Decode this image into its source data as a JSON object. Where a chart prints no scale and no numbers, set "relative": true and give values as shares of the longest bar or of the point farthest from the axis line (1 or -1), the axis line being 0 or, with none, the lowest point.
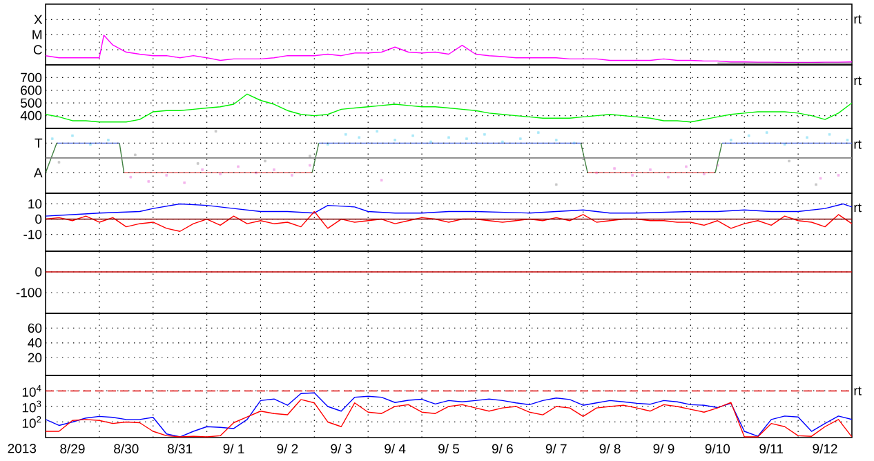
{
  "chart_data": [
    {
      "type": "line",
      "xlim": [
        "2013-08-29T00:00",
        "2013-09-13T00:00"
      ],
      "relative": true,
      "grid": true,
      "tick_labels": "y",
      "xticks": [
        {
          "value": "2013-08-30T00:00",
          "label": null
        },
        {
          "value": "2013-08-31T00:00",
          "label": null
        },
        {
          "value": "2013-09-01T00:00",
          "label": null
        },
        {
          "value": "2013-09-02T00:00",
          "label": null
        },
        {
          "value": "2013-09-03T00:00",
          "label": null
        },
        {
          "value": "2013-09-04T00:00",
          "label": null
        },
        {
          "value": "2013-09-05T00:00",
          "label": null
        },
        {
          "value": "2013-09-06T00:00",
          "label": null
        },
        {
          "value": "2013-09-07T00:00",
          "label": null
        },
        {
          "value": "2013-09-08T00:00",
          "label": null
        },
        {
          "value": "2013-09-09T00:00",
          "label": null
        },
        {
          "value": "2013-09-10T00:00",
          "label": null
        },
        {
          "value": "2013-09-11T00:00",
          "label": null
        },
        {
          "value": "2013-09-12T00:00",
          "label": null
        }
      ],
      "annotations": [
        "rt",
        "X",
        "M",
        {
          "text": "C",
          "x": "2013-08-29T00:00",
          "y": 0.51
        }
      ],
      "series": [
        {
          "color": "#ff00ff",
          "x": [
            "2013-08-29T00:00",
            "2013-08-29T06:00",
            "2013-08-29T12:00",
            "2013-08-29T18:00",
            "2013-08-30T00:00",
            "2013-08-30T02:00",
            "2013-08-30T06:00",
            "2013-08-30T12:00",
            "2013-08-30T18:00",
            "2013-08-31T00:00",
            "2013-08-31T06:00",
            "2013-08-31T12:00",
            "2013-08-31T18:00",
            "2013-09-01T00:00",
            "2013-09-01T06:00",
            "2013-09-01T12:00",
            "2013-09-01T18:00",
            "2013-09-02T00:00",
            "2013-09-02T06:00",
            "2013-09-02T12:00",
            "2013-09-02T18:00",
            "2013-09-03T00:00",
            "2013-09-03T06:00",
            "2013-09-03T12:00",
            "2013-09-03T18:00",
            "2013-09-04T00:00",
            "2013-09-04T06:00",
            "2013-09-04T12:00",
            "2013-09-04T18:00",
            "2013-09-05T00:00",
            "2013-09-05T06:00",
            "2013-09-05T12:00",
            "2013-09-05T18:00",
            "2013-09-06T00:00",
            "2013-09-06T06:00",
            "2013-09-06T12:00",
            "2013-09-06T18:00",
            "2013-09-07T00:00",
            "2013-09-07T06:00",
            "2013-09-07T12:00",
            "2013-09-07T18:00",
            "2013-09-08T00:00",
            "2013-09-08T06:00",
            "2013-09-08T12:00",
            "2013-09-08T18:00",
            "2013-09-09T00:00",
            "2013-09-09T06:00",
            "2013-09-09T12:00",
            "2013-09-09T18:00",
            "2013-09-10T00:00",
            "2013-09-10T06:00",
            "2013-09-10T12:00",
            "2013-09-10T18:00",
            "2013-09-11T00:00",
            "2013-09-11T06:00",
            "2013-09-11T12:00",
            "2013-09-11T18:00",
            "2013-09-12T00:00",
            "2013-09-12T06:00",
            "2013-09-12T12:00",
            "2013-09-12T18:00",
            "2013-09-13T00:00"
          ],
          "values": [
            0.31,
            0.24,
            0.24,
            0.24,
            0.24,
            1,
            0.67,
            0.43,
            0.36,
            0.31,
            0.31,
            0.24,
            0.31,
            0.24,
            0.15,
            0.2,
            0.2,
            0.2,
            0.24,
            0.31,
            0.31,
            0.31,
            0.36,
            0.31,
            0.4,
            0.4,
            0.43,
            0.6,
            0.43,
            0.4,
            0.43,
            0.36,
            0.66,
            0.36,
            0.31,
            0.28,
            0.24,
            0.24,
            0.24,
            0.24,
            0.2,
            0.2,
            0.2,
            0.15,
            0.15,
            0.15,
            0.15,
            0.2,
            0.15,
            0.15,
            0.13,
            0.13,
            0.1,
            0.1,
            0.09,
            0.09,
            0.08,
            0.08,
            0.08,
            0.09,
            0.09,
            0.1
          ]
        },
        {
          "color": "#404040",
          "x": [
            "2013-09-10T12:00",
            "2013-09-13T00:00"
          ],
          "values": [
            0.06,
            0.06
          ]
        }
      ]
    },
    {
      "type": "line",
      "xlim": [
        "2013-08-29T00:00",
        "2013-09-13T00:00"
      ],
      "ylim": [
        300,
        800
      ],
      "grid": true,
      "tick_labels": "y",
      "yticks": [
        400,
        500,
        600,
        700
      ],
      "xticks": [
        {
          "value": "2013-08-30T00:00",
          "label": null
        },
        {
          "value": "2013-08-31T00:00",
          "label": null
        },
        {
          "value": "2013-09-01T00:00",
          "label": null
        },
        {
          "value": "2013-09-02T00:00",
          "label": null
        },
        {
          "value": "2013-09-03T00:00",
          "label": null
        },
        {
          "value": "2013-09-04T00:00",
          "label": null
        },
        {
          "value": "2013-09-05T00:00",
          "label": null
        },
        {
          "value": "2013-09-06T00:00",
          "label": null
        },
        {
          "value": "2013-09-07T00:00",
          "label": null
        },
        {
          "value": "2013-09-08T00:00",
          "label": null
        },
        {
          "value": "2013-09-09T00:00",
          "label": null
        },
        {
          "value": "2013-09-10T00:00",
          "label": null
        },
        {
          "value": "2013-09-11T00:00",
          "label": null
        },
        {
          "value": "2013-09-12T00:00",
          "label": null
        }
      ],
      "annotations": [
        "rt"
      ],
      "x": [
        "2013-08-29T00:00",
        "2013-08-29T06:00",
        "2013-08-29T12:00",
        "2013-08-29T18:00",
        "2013-08-30T00:00",
        "2013-08-30T06:00",
        "2013-08-30T12:00",
        "2013-08-30T18:00",
        "2013-08-31T00:00",
        "2013-08-31T06:00",
        "2013-08-31T12:00",
        "2013-08-31T18:00",
        "2013-09-01T00:00",
        "2013-09-01T06:00",
        "2013-09-01T12:00",
        "2013-09-01T18:00",
        "2013-09-02T00:00",
        "2013-09-02T06:00",
        "2013-09-02T12:00",
        "2013-09-02T18:00",
        "2013-09-03T00:00",
        "2013-09-03T06:00",
        "2013-09-03T12:00",
        "2013-09-03T18:00",
        "2013-09-04T00:00",
        "2013-09-04T06:00",
        "2013-09-04T12:00",
        "2013-09-04T18:00",
        "2013-09-05T00:00",
        "2013-09-05T06:00",
        "2013-09-05T12:00",
        "2013-09-05T18:00",
        "2013-09-06T00:00",
        "2013-09-06T06:00",
        "2013-09-06T12:00",
        "2013-09-06T18:00",
        "2013-09-07T00:00",
        "2013-09-07T06:00",
        "2013-09-07T12:00",
        "2013-09-07T18:00",
        "2013-09-08T00:00",
        "2013-09-08T06:00",
        "2013-09-08T12:00",
        "2013-09-08T18:00",
        "2013-09-09T00:00",
        "2013-09-09T06:00",
        "2013-09-09T12:00",
        "2013-09-09T18:00",
        "2013-09-10T00:00",
        "2013-09-10T06:00",
        "2013-09-10T12:00",
        "2013-09-10T18:00",
        "2013-09-11T00:00",
        "2013-09-11T06:00",
        "2013-09-11T12:00",
        "2013-09-11T18:00",
        "2013-09-12T00:00",
        "2013-09-12T06:00",
        "2013-09-12T12:00",
        "2013-09-12T18:00",
        "2013-09-13T00:00"
      ],
      "series": [
        {
          "color": "#00ee00",
          "values": [
            410,
            390,
            360,
            360,
            350,
            350,
            350,
            370,
            430,
            440,
            440,
            450,
            460,
            470,
            490,
            570,
            520,
            490,
            440,
            410,
            400,
            410,
            450,
            460,
            470,
            480,
            490,
            480,
            470,
            470,
            460,
            450,
            440,
            420,
            410,
            400,
            390,
            380,
            380,
            380,
            390,
            400,
            410,
            400,
            390,
            380,
            360,
            360,
            350,
            370,
            390,
            410,
            420,
            430,
            430,
            430,
            420,
            400,
            370,
            420,
            500
          ]
        }
      ]
    },
    {
      "type": "line",
      "xlim": [
        "2013-08-29T00:00",
        "2013-09-13T00:00"
      ],
      "relative": true,
      "grid": true,
      "tick_labels": "y",
      "xticks": [
        {
          "value": "2013-08-30T00:00",
          "label": null
        },
        {
          "value": "2013-08-31T00:00",
          "label": null
        },
        {
          "value": "2013-09-01T00:00",
          "label": null
        },
        {
          "value": "2013-09-02T00:00",
          "label": null
        },
        {
          "value": "2013-09-03T00:00",
          "label": null
        },
        {
          "value": "2013-09-04T00:00",
          "label": null
        },
        {
          "value": "2013-09-05T00:00",
          "label": null
        },
        {
          "value": "2013-09-06T00:00",
          "label": null
        },
        {
          "value": "2013-09-07T00:00",
          "label": null
        },
        {
          "value": "2013-09-08T00:00",
          "label": null
        },
        {
          "value": "2013-09-09T00:00",
          "label": null
        },
        {
          "value": "2013-09-10T00:00",
          "label": null
        },
        {
          "value": "2013-09-11T00:00",
          "label": null
        },
        {
          "value": "2013-09-12T00:00",
          "label": null
        }
      ],
      "annotations": [
        "rt",
        {
          "text": "T",
          "x": "2013-08-29T00:00",
          "y": 0.81
        },
        {
          "text": "A",
          "x": "2013-08-29T00:00",
          "y": 0.33
        }
      ],
      "ref_lines": [
        {
          "axis": "y",
          "value": 0.57,
          "color": "#808080"
        }
      ],
      "series": [
        {
          "type": "scatter",
          "color": "#aae8f8",
          "x": [
            "2013-08-29T03:00",
            "2013-08-29T12:00",
            "2013-08-29T20:00",
            "2013-08-30T04:00",
            "2013-09-03T06:00",
            "2013-09-03T14:00",
            "2013-09-03T20:00",
            "2013-09-04T04:00",
            "2013-09-04T12:00",
            "2013-09-04T20:00",
            "2013-09-05T04:00",
            "2013-09-05T12:00",
            "2013-09-05T20:00",
            "2013-09-06T04:00",
            "2013-09-06T12:00",
            "2013-09-06T20:00",
            "2013-09-07T04:00",
            "2013-09-07T12:00",
            "2013-09-07T20:00",
            "2013-09-10T18:00",
            "2013-09-11T02:00",
            "2013-09-11T10:00",
            "2013-09-11T18:00",
            "2013-09-12T04:00",
            "2013-09-12T14:00",
            "2013-09-12T22:00"
          ],
          "values": [
            0.88,
            0.93,
            0.79,
            0.86,
            0.79,
            0.95,
            0.9,
            1,
            0.86,
            0.93,
            0.83,
            0.9,
            0.88,
            0.95,
            0.83,
            0.88,
            0.98,
            0.86,
            0.81,
            0.86,
            0.93,
            0.98,
            0.79,
            0.9,
            0.95,
            0.86
          ]
        },
        {
          "type": "scatter",
          "color": "#f4b4ec",
          "x": [
            "2013-08-30T14:00",
            "2013-08-30T22:00",
            "2013-08-31T06:00",
            "2013-08-31T14:00",
            "2013-08-31T22:00",
            "2013-09-01T06:00",
            "2013-09-01T14:00",
            "2013-09-01T22:00",
            "2013-09-02T06:00",
            "2013-09-02T14:00",
            "2013-09-02T22:00",
            "2013-09-04T06:00",
            "2013-09-08T06:00",
            "2013-09-08T14:00",
            "2013-09-08T22:00",
            "2013-09-09T06:00",
            "2013-09-09T14:00",
            "2013-09-09T22:00",
            "2013-09-10T06:00",
            "2013-09-10T12:00",
            "2013-09-12T10:00",
            "2013-09-12T18:00"
          ],
          "values": [
            0.26,
            0.19,
            0.29,
            0.17,
            0.38,
            0.31,
            0.43,
            0.33,
            0.38,
            0.29,
            0.45,
            0.21,
            0.33,
            0.4,
            0.29,
            0.38,
            0.26,
            0.43,
            0.31,
            0.45,
            0.24,
            0.29
          ]
        },
        {
          "type": "scatter",
          "color": "#c8c8c8",
          "x": [
            "2013-08-29T06:00",
            "2013-08-30T16:00",
            "2013-08-31T20:00",
            "2013-09-01T04:00",
            "2013-09-02T02:00",
            "2013-09-02T22:00",
            "2013-09-07T12:00",
            "2013-09-11T20:00",
            "2013-09-12T08:00"
          ],
          "values": [
            0.5,
            0.62,
            0.48,
            1,
            0.52,
            0.6,
            0.14,
            0.52,
            0.14
          ]
        },
        {
          "color": "#4060e0",
          "x": [
            "2013-08-29T05:00",
            "2013-08-30T09:00",
            "2013-08-30T10:00",
            "2013-09-03T02:00",
            "2013-09-07T23:00",
            "2013-09-08T00:00",
            "2013-09-10T14:00",
            "2013-09-13T00:00"
          ],
          "values": [
            0.81,
            0.81,
            null,
            0.81,
            0.81,
            null,
            0.81,
            0.81
          ]
        },
        {
          "color": "#e04040",
          "x": [
            "2013-08-30T11:00",
            "2013-09-02T23:00",
            "2013-09-03T00:00",
            "2013-09-08T02:00",
            "2013-09-10T11:00"
          ],
          "values": [
            0.33,
            0.33,
            null,
            0.33,
            0.33
          ]
        },
        {
          "color": "#408040",
          "x": [
            "2013-08-29T00:00",
            "2013-08-29T05:00",
            "2013-08-29T06:00",
            "2013-08-30T09:00",
            "2013-08-30T11:00",
            "2013-08-30T12:00",
            "2013-09-02T23:00",
            "2013-09-03T02:00",
            "2013-09-03T03:00",
            "2013-09-07T23:00",
            "2013-09-08T02:00",
            "2013-09-08T03:00",
            "2013-09-10T11:00",
            "2013-09-10T14:00"
          ],
          "values": [
            0.33,
            0.81,
            null,
            0.81,
            0.33,
            null,
            0.33,
            0.81,
            null,
            0.81,
            0.33,
            null,
            0.33,
            0.81
          ]
        }
      ]
    },
    {
      "type": "line",
      "xlim": [
        "2013-08-29T00:00",
        "2013-09-13T00:00"
      ],
      "ylim": [
        -21,
        17
      ],
      "grid": true,
      "tick_labels": "y",
      "yticks": [
        -10,
        0,
        10
      ],
      "xticks": [
        {
          "value": "2013-08-30T00:00",
          "label": null
        },
        {
          "value": "2013-08-31T00:00",
          "label": null
        },
        {
          "value": "2013-09-01T00:00",
          "label": null
        },
        {
          "value": "2013-09-02T00:00",
          "label": null
        },
        {
          "value": "2013-09-03T00:00",
          "label": null
        },
        {
          "value": "2013-09-04T00:00",
          "label": null
        },
        {
          "value": "2013-09-05T00:00",
          "label": null
        },
        {
          "value": "2013-09-06T00:00",
          "label": null
        },
        {
          "value": "2013-09-07T00:00",
          "label": null
        },
        {
          "value": "2013-09-08T00:00",
          "label": null
        },
        {
          "value": "2013-09-09T00:00",
          "label": null
        },
        {
          "value": "2013-09-10T00:00",
          "label": null
        },
        {
          "value": "2013-09-11T00:00",
          "label": null
        },
        {
          "value": "2013-09-12T00:00",
          "label": null
        }
      ],
      "annotations": [
        "rt"
      ],
      "ref_lines": [
        {
          "axis": "y",
          "value": 0,
          "color": "#800000"
        }
      ],
      "x": [
        "2013-08-29T00:00",
        "2013-08-29T06:00",
        "2013-08-29T12:00",
        "2013-08-29T18:00",
        "2013-08-30T00:00",
        "2013-08-30T06:00",
        "2013-08-30T12:00",
        "2013-08-30T18:00",
        "2013-08-31T00:00",
        "2013-08-31T06:00",
        "2013-08-31T12:00",
        "2013-08-31T18:00",
        "2013-09-01T00:00",
        "2013-09-01T06:00",
        "2013-09-01T12:00",
        "2013-09-01T18:00",
        "2013-09-02T00:00",
        "2013-09-02T06:00",
        "2013-09-02T12:00",
        "2013-09-02T18:00",
        "2013-09-03T00:00",
        "2013-09-03T06:00",
        "2013-09-03T12:00",
        "2013-09-03T18:00",
        "2013-09-04T00:00",
        "2013-09-04T06:00",
        "2013-09-04T12:00",
        "2013-09-04T18:00",
        "2013-09-05T00:00",
        "2013-09-05T06:00",
        "2013-09-05T12:00",
        "2013-09-05T18:00",
        "2013-09-06T00:00",
        "2013-09-06T06:00",
        "2013-09-06T12:00",
        "2013-09-06T18:00",
        "2013-09-07T00:00",
        "2013-09-07T06:00",
        "2013-09-07T12:00",
        "2013-09-07T18:00",
        "2013-09-08T00:00",
        "2013-09-08T06:00",
        "2013-09-08T12:00",
        "2013-09-08T18:00",
        "2013-09-09T00:00",
        "2013-09-09T06:00",
        "2013-09-09T12:00",
        "2013-09-09T18:00",
        "2013-09-10T00:00",
        "2013-09-10T06:00",
        "2013-09-10T12:00",
        "2013-09-10T18:00",
        "2013-09-11T00:00",
        "2013-09-11T06:00",
        "2013-09-11T12:00",
        "2013-09-11T18:00",
        "2013-09-12T00:00",
        "2013-09-12T06:00",
        "2013-09-12T12:00",
        "2013-09-12T18:00",
        "2013-09-13T00:00"
      ],
      "series": [
        {
          "color": "#0000ff",
          "x": [
            "2013-08-29T00:00",
            "2013-08-29T12:00",
            "2013-08-30T00:00",
            "2013-08-30T18:00",
            "2013-08-31T00:00",
            "2013-08-31T12:00",
            "2013-09-01T00:00",
            "2013-09-01T12:00",
            "2013-09-02T00:00",
            "2013-09-02T12:00",
            "2013-09-03T00:00",
            "2013-09-03T06:00",
            "2013-09-03T18:00",
            "2013-09-04T00:00",
            "2013-09-04T12:00",
            "2013-09-05T00:00",
            "2013-09-05T12:00",
            "2013-09-06T00:00",
            "2013-09-07T00:00",
            "2013-09-08T00:00",
            "2013-09-08T12:00",
            "2013-09-09T00:00",
            "2013-09-10T00:00",
            "2013-09-10T12:00",
            "2013-09-11T00:00",
            "2013-09-11T12:00",
            "2013-09-12T00:00",
            "2013-09-12T12:00",
            "2013-09-12T20:00",
            "2013-09-13T00:00"
          ],
          "values": [
            2,
            3,
            4,
            5,
            7,
            10,
            9,
            7,
            5,
            5,
            4,
            9,
            8,
            5,
            4,
            4,
            5,
            5,
            4,
            6,
            4,
            4,
            5,
            5,
            6,
            5,
            5,
            7,
            10,
            8
          ]
        },
        {
          "color": "#ff0000",
          "values": [
            0,
            1,
            -1,
            2,
            -2,
            1,
            -5,
            -3,
            -2,
            -6,
            -8,
            -3,
            0,
            -4,
            2,
            -3,
            -1,
            -3,
            -2,
            -5,
            5,
            -6,
            0,
            -2,
            -1,
            0,
            -3,
            -1,
            1,
            0,
            -2,
            0,
            0,
            -1,
            -2,
            -1,
            0,
            -1,
            1,
            -1,
            3,
            -2,
            -1,
            0,
            0,
            -1,
            -1,
            -2,
            -2,
            -4,
            -1,
            -6,
            -3,
            -1,
            -4,
            2,
            -1,
            -2,
            -5,
            3,
            -3
          ]
        }
      ]
    },
    {
      "type": "line",
      "xlim": [
        "2013-08-29T00:00",
        "2013-09-13T00:00"
      ],
      "ylim": [
        -200,
        100
      ],
      "grid": true,
      "tick_labels": "y",
      "yticks": [
        -100,
        0
      ],
      "xticks": [
        {
          "value": "2013-08-30T00:00",
          "label": null
        },
        {
          "value": "2013-08-31T00:00",
          "label": null
        },
        {
          "value": "2013-09-01T00:00",
          "label": null
        },
        {
          "value": "2013-09-02T00:00",
          "label": null
        },
        {
          "value": "2013-09-03T00:00",
          "label": null
        },
        {
          "value": "2013-09-04T00:00",
          "label": null
        },
        {
          "value": "2013-09-05T00:00",
          "label": null
        },
        {
          "value": "2013-09-06T00:00",
          "label": null
        },
        {
          "value": "2013-09-07T00:00",
          "label": null
        },
        {
          "value": "2013-09-08T00:00",
          "label": null
        },
        {
          "value": "2013-09-09T00:00",
          "label": null
        },
        {
          "value": "2013-09-10T00:00",
          "label": null
        },
        {
          "value": "2013-09-11T00:00",
          "label": null
        },
        {
          "value": "2013-09-12T00:00",
          "label": null
        }
      ],
      "ref_lines": [
        {
          "axis": "y",
          "value": 0,
          "color": "#c00000"
        }
      ]
    },
    {
      "type": "line",
      "xlim": [
        "2013-08-29T00:00",
        "2013-09-13T00:00"
      ],
      "ylim": [
        -4,
        80
      ],
      "grid": true,
      "tick_labels": "y",
      "yticks": [
        20,
        40,
        60
      ],
      "xticks": [
        {
          "value": "2013-08-30T00:00",
          "label": null
        },
        {
          "value": "2013-08-31T00:00",
          "label": null
        },
        {
          "value": "2013-09-01T00:00",
          "label": null
        },
        {
          "value": "2013-09-02T00:00",
          "label": null
        },
        {
          "value": "2013-09-03T00:00",
          "label": null
        },
        {
          "value": "2013-09-04T00:00",
          "label": null
        },
        {
          "value": "2013-09-05T00:00",
          "label": null
        },
        {
          "value": "2013-09-06T00:00",
          "label": null
        },
        {
          "value": "2013-09-07T00:00",
          "label": null
        },
        {
          "value": "2013-09-08T00:00",
          "label": null
        },
        {
          "value": "2013-09-09T00:00",
          "label": null
        },
        {
          "value": "2013-09-10T00:00",
          "label": null
        },
        {
          "value": "2013-09-11T00:00",
          "label": null
        },
        {
          "value": "2013-09-12T00:00",
          "label": null
        }
      ]
    },
    {
      "type": "line",
      "xlim": [
        "2013-08-29T00:00",
        "2013-09-13T00:00"
      ],
      "ylim": [
        10,
        100000
      ],
      "log": "y",
      "grid": true,
      "xlabel": "2013",
      "yticks": [
        {
          "value": 100,
          "label": "10$^{2}$"
        },
        {
          "value": 1000,
          "label": "10$^{3}$"
        },
        {
          "value": 10000,
          "label": "10$^{4}$"
        }
      ],
      "xticks": [
        {
          "value": "2013-08-29T12:00",
          "label": "8/29"
        },
        {
          "value": "2013-08-30T12:00",
          "label": "8/30"
        },
        {
          "value": "2013-08-31T12:00",
          "label": "8/31"
        },
        {
          "value": "2013-09-01T12:00",
          "label": "9/ 1"
        },
        {
          "value": "2013-09-02T12:00",
          "label": "9/ 2"
        },
        {
          "value": "2013-09-03T12:00",
          "label": "9/ 3"
        },
        {
          "value": "2013-09-04T12:00",
          "label": "9/ 4"
        },
        {
          "value": "2013-09-05T12:00",
          "label": "9/ 5"
        },
        {
          "value": "2013-09-06T12:00",
          "label": "9/ 6"
        },
        {
          "value": "2013-09-07T12:00",
          "label": "9/ 7"
        },
        {
          "value": "2013-09-08T12:00",
          "label": "9/ 8"
        },
        {
          "value": "2013-09-09T12:00",
          "label": "9/ 9"
        },
        {
          "value": "2013-09-10T12:00",
          "label": "9/10"
        },
        {
          "value": "2013-09-11T12:00",
          "label": "9/11"
        },
        {
          "value": "2013-09-12T12:00",
          "label": "9/12"
        },
        {
          "value": "2013-08-30T00:00",
          "label": null
        },
        {
          "value": "2013-08-31T00:00",
          "label": null
        },
        {
          "value": "2013-09-01T00:00",
          "label": null
        },
        {
          "value": "2013-09-02T00:00",
          "label": null
        },
        {
          "value": "2013-09-03T00:00",
          "label": null
        },
        {
          "value": "2013-09-04T00:00",
          "label": null
        },
        {
          "value": "2013-09-05T00:00",
          "label": null
        },
        {
          "value": "2013-09-06T00:00",
          "label": null
        },
        {
          "value": "2013-09-07T00:00",
          "label": null
        },
        {
          "value": "2013-09-08T00:00",
          "label": null
        },
        {
          "value": "2013-09-09T00:00",
          "label": null
        },
        {
          "value": "2013-09-10T00:00",
          "label": null
        },
        {
          "value": "2013-09-11T00:00",
          "label": null
        },
        {
          "value": "2013-09-12T00:00",
          "label": null
        }
      ],
      "annotations": [
        "rt"
      ],
      "ref_lines": [
        {
          "axis": "y",
          "value": 10000,
          "color": "#e00000",
          "line_style": "dashed"
        }
      ],
      "x": [
        "2013-08-29T00:00",
        "2013-08-29T06:00",
        "2013-08-29T12:00",
        "2013-08-29T18:00",
        "2013-08-30T00:00",
        "2013-08-30T06:00",
        "2013-08-30T12:00",
        "2013-08-30T18:00",
        "2013-08-31T00:00",
        "2013-08-31T06:00",
        "2013-08-31T12:00",
        "2013-08-31T18:00",
        "2013-09-01T00:00",
        "2013-09-01T06:00",
        "2013-09-01T12:00",
        "2013-09-01T18:00",
        "2013-09-02T00:00",
        "2013-09-02T06:00",
        "2013-09-02T12:00",
        "2013-09-02T18:00",
        "2013-09-03T00:00",
        "2013-09-03T06:00",
        "2013-09-03T12:00",
        "2013-09-03T18:00",
        "2013-09-04T00:00",
        "2013-09-04T06:00",
        "2013-09-04T12:00",
        "2013-09-04T18:00",
        "2013-09-05T00:00",
        "2013-09-05T06:00",
        "2013-09-05T12:00",
        "2013-09-05T18:00",
        "2013-09-06T00:00",
        "2013-09-06T06:00",
        "2013-09-06T12:00",
        "2013-09-06T18:00",
        "2013-09-07T00:00",
        "2013-09-07T06:00",
        "2013-09-07T12:00",
        "2013-09-07T18:00",
        "2013-09-08T00:00",
        "2013-09-08T06:00",
        "2013-09-08T12:00",
        "2013-09-08T18:00",
        "2013-09-09T00:00",
        "2013-09-09T06:00",
        "2013-09-09T12:00",
        "2013-09-09T18:00",
        "2013-09-10T00:00",
        "2013-09-10T06:00",
        "2013-09-10T12:00",
        "2013-09-10T18:00",
        "2013-09-11T00:00",
        "2013-09-11T06:00",
        "2013-09-11T12:00",
        "2013-09-11T18:00",
        "2013-09-12T00:00",
        "2013-09-12T06:00",
        "2013-09-12T12:00",
        "2013-09-12T18:00",
        "2013-09-13T00:00"
      ],
      "series": [
        {
          "color": "#0000ff",
          "values": [
            145,
            60,
            100,
            180,
            230,
            200,
            145,
            145,
            200,
            17,
            11,
            25,
            50,
            45,
            38,
            145,
            2400,
            3000,
            1200,
            6800,
            7500,
            1000,
            500,
            3900,
            4500,
            3900,
            1800,
            2500,
            2900,
            1450,
            2400,
            2000,
            2400,
            3000,
            2400,
            1700,
            1300,
            2400,
            3500,
            2800,
            1200,
            1700,
            2400,
            2000,
            1600,
            1400,
            2400,
            2000,
            1300,
            1200,
            850,
            1600,
            25,
            12,
            145,
            240,
            210,
            25,
            80,
            240,
            145
          ]
        },
        {
          "color": "#ff0000",
          "values": [
            25,
            25,
            125,
            145,
            125,
            80,
            100,
            90,
            25,
            13,
            11,
            12,
            11,
            13,
            90,
            210,
            500,
            350,
            290,
            2800,
            1700,
            100,
            50,
            1700,
            430,
            350,
            1000,
            1300,
            430,
            350,
            1000,
            1300,
            800,
            500,
            800,
            1000,
            430,
            290,
            1000,
            800,
            230,
            800,
            1000,
            1200,
            800,
            500,
            1300,
            1000,
            650,
            430,
            800,
            1800,
            11,
            11,
            80,
            50,
            13,
            12,
            50,
            145,
            11
          ]
        }
      ]
    }
  ]
}
